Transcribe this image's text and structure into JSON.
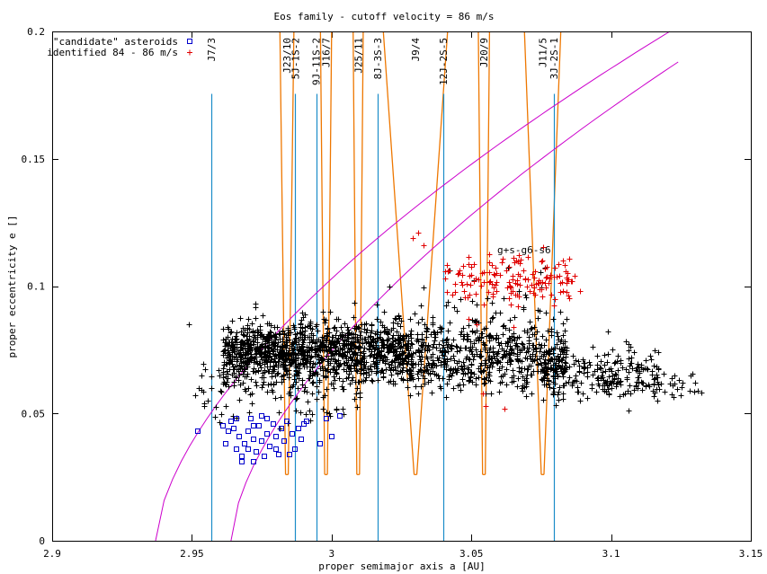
{
  "chart_data": {
    "type": "scatter",
    "title": "Eos family - cutoff velocity = 86 m/s",
    "xlabel": "proper semimajor axis a [AU]",
    "ylabel": "proper eccentricity e []",
    "xlim": [
      2.9,
      3.15
    ],
    "ylim": [
      0,
      0.2
    ],
    "xticks": [
      {
        "v": 2.9,
        "label": "2.9"
      },
      {
        "v": 2.95,
        "label": "2.95"
      },
      {
        "v": 3.0,
        "label": "3"
      },
      {
        "v": 3.05,
        "label": "3.05"
      },
      {
        "v": 3.1,
        "label": "3.1"
      },
      {
        "v": 3.15,
        "label": "3.15"
      }
    ],
    "yticks": [
      {
        "v": 0,
        "label": "0"
      },
      {
        "v": 0.05,
        "label": "0.05"
      },
      {
        "v": 0.1,
        "label": "0.1"
      },
      {
        "v": 0.15,
        "label": "0.15"
      },
      {
        "v": 0.2,
        "label": "0.2"
      }
    ],
    "legend_position": "top-left",
    "series": [
      {
        "name": "\"candidate\" asteroids",
        "marker": "square",
        "color": "#0000cc",
        "points": [
          [
            2.952,
            0.043
          ],
          [
            2.961,
            0.045
          ],
          [
            2.962,
            0.038
          ],
          [
            2.963,
            0.043
          ],
          [
            2.964,
            0.047
          ],
          [
            2.966,
            0.036
          ],
          [
            2.966,
            0.048
          ],
          [
            2.967,
            0.041
          ],
          [
            2.968,
            0.033
          ],
          [
            2.969,
            0.038
          ],
          [
            2.97,
            0.043
          ],
          [
            2.971,
            0.048
          ],
          [
            2.972,
            0.031
          ],
          [
            2.972,
            0.04
          ],
          [
            2.973,
            0.035
          ],
          [
            2.974,
            0.045
          ],
          [
            2.975,
            0.039
          ],
          [
            2.975,
            0.049
          ],
          [
            2.976,
            0.033
          ],
          [
            2.977,
            0.042
          ],
          [
            2.978,
            0.037
          ],
          [
            2.979,
            0.046
          ],
          [
            2.98,
            0.041
          ],
          [
            2.981,
            0.034
          ],
          [
            2.982,
            0.044
          ],
          [
            2.983,
            0.039
          ],
          [
            2.984,
            0.047
          ],
          [
            2.986,
            0.042
          ],
          [
            2.987,
            0.036
          ],
          [
            2.988,
            0.044
          ],
          [
            2.985,
            0.034
          ],
          [
            2.989,
            0.04
          ],
          [
            2.99,
            0.046
          ],
          [
            2.968,
            0.031
          ],
          [
            2.972,
            0.045
          ],
          [
            2.991,
            0.047
          ],
          [
            2.996,
            0.038
          ],
          [
            2.998,
            0.048
          ],
          [
            3.0,
            0.041
          ],
          [
            3.003,
            0.049
          ],
          [
            2.965,
            0.044
          ],
          [
            2.97,
            0.036
          ],
          [
            2.977,
            0.048
          ],
          [
            2.98,
            0.036
          ]
        ]
      },
      {
        "name": "identified 84 - 86 m/s",
        "marker": "plus",
        "color": "#e00000",
        "points": []
      },
      {
        "name": "",
        "marker": "plus",
        "color": "#000000",
        "points": []
      }
    ],
    "resonances": [
      {
        "label": "J7/3",
        "a": 2.957,
        "tip": 0.1755,
        "w": 0
      },
      {
        "label": "J23/10",
        "a": 2.984,
        "tip": 0.2,
        "w": 0.0025
      },
      {
        "label": "5J-1S-2",
        "a": 2.987,
        "tip": 0.1755,
        "w": 0
      },
      {
        "label": "9J-11S-2",
        "a": 2.9945,
        "tip": 0.1755,
        "w": 0
      },
      {
        "label": "J16/7",
        "a": 2.998,
        "tip": 0.2,
        "w": 0.002
      },
      {
        "label": "J25/11",
        "a": 3.0095,
        "tip": 0.2,
        "w": 0.0018
      },
      {
        "label": "8J-3S-3",
        "a": 3.0165,
        "tip": 0.1755,
        "w": 0
      },
      {
        "label": "J9/4",
        "a": 3.03,
        "tip": 0.2,
        "w": 0.0115
      },
      {
        "label": "12J-2S-5",
        "a": 3.04,
        "tip": 0.1755,
        "w": 0
      },
      {
        "label": "J20/9",
        "a": 3.0545,
        "tip": 0.2,
        "w": 0.002
      },
      {
        "label": "J11/5",
        "a": 3.0755,
        "tip": 0.2,
        "w": 0.0065
      },
      {
        "label": "3J-2S-1",
        "a": 3.0795,
        "tip": 0.1755,
        "w": 0
      }
    ],
    "annotation": "g+s-g6-s6"
  }
}
